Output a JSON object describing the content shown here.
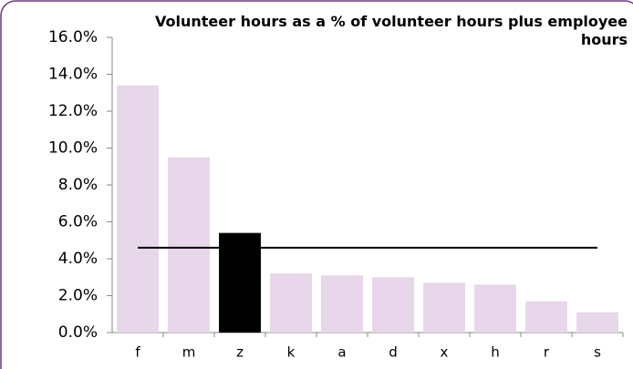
{
  "chart_data": {
    "type": "bar",
    "title": "Volunteer hours as a % of volunteer hours plus employee hours",
    "categories": [
      "f",
      "m",
      "z",
      "k",
      "a",
      "d",
      "x",
      "h",
      "r",
      "s"
    ],
    "values": [
      13.4,
      9.5,
      5.4,
      3.2,
      3.1,
      3.0,
      2.7,
      2.6,
      1.7,
      1.1
    ],
    "colors": [
      "#e8d6ea",
      "#e8d6ea",
      "#000000",
      "#e8d6ea",
      "#e8d6ea",
      "#e8d6ea",
      "#e8d6ea",
      "#e8d6ea",
      "#e8d6ea",
      "#e8d6ea"
    ],
    "reference_line": {
      "value": 4.6,
      "color": "#000000"
    },
    "ylim": [
      0,
      16
    ],
    "yticks": [
      {
        "value": 0,
        "label": "0.0%"
      },
      {
        "value": 2,
        "label": "2.0%"
      },
      {
        "value": 4,
        "label": "4.0%"
      },
      {
        "value": 6,
        "label": "6.0%"
      },
      {
        "value": 8,
        "label": "8.0%"
      },
      {
        "value": 10,
        "label": "10.0%"
      },
      {
        "value": 12,
        "label": "12.0%"
      },
      {
        "value": 14,
        "label": "14.0%"
      },
      {
        "value": 16,
        "label": "16.0%"
      }
    ],
    "grid": false
  }
}
